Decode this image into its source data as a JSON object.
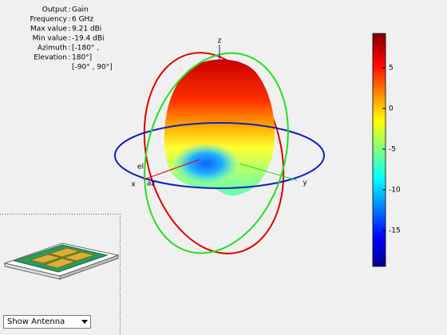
{
  "chart_data": {
    "type": "pattern3d",
    "axis_labels": [
      "z",
      "x",
      "y",
      "el",
      "az"
    ],
    "colorbar": {
      "clim": [
        -19.4,
        9.21
      ],
      "ticks": [
        5,
        0,
        -5,
        -10,
        -15
      ]
    }
  },
  "info": [
    {
      "label": "Output",
      "value": "Gain"
    },
    {
      "label": "Frequency",
      "value": "6 GHz"
    },
    {
      "label": "Max value",
      "value": "9.21 dBi"
    },
    {
      "label": "Min value",
      "value": "-19.4 dBi"
    },
    {
      "label": "Azimuth",
      "value": "[-180° ,"
    },
    {
      "label": "Elevation",
      "value": "180°]"
    }
  ],
  "info_extra": "[-90° , 90°]",
  "dropdown": "Show Antenna"
}
